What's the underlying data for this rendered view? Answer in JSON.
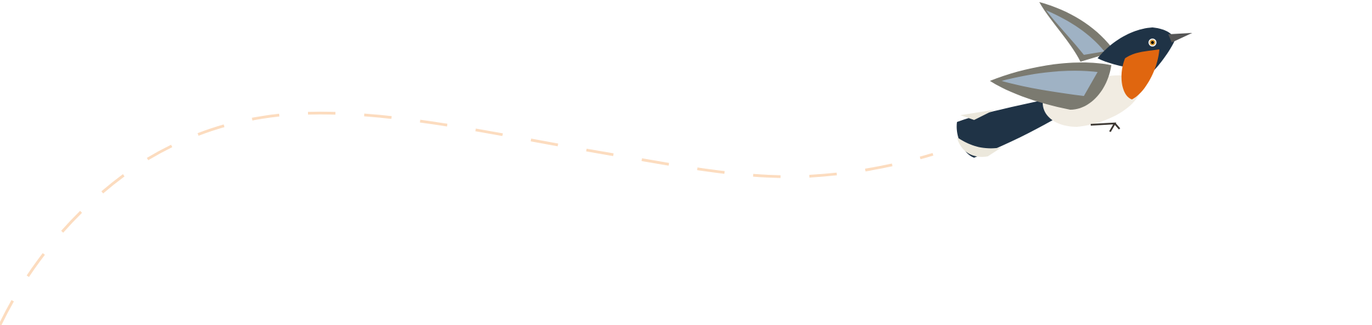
{
  "illustration": {
    "flight_path": {
      "style": "dashed",
      "color": "#fcdcbf"
    },
    "bird": {
      "icon": "bird-illustration",
      "colors": {
        "back": "#1f3346",
        "throat": "#e0660f",
        "belly": "#f1ece2",
        "wing": "#7b7a70",
        "wing_highlight": "#9fb2c4",
        "tail_tip": "#ece8dc"
      }
    }
  }
}
